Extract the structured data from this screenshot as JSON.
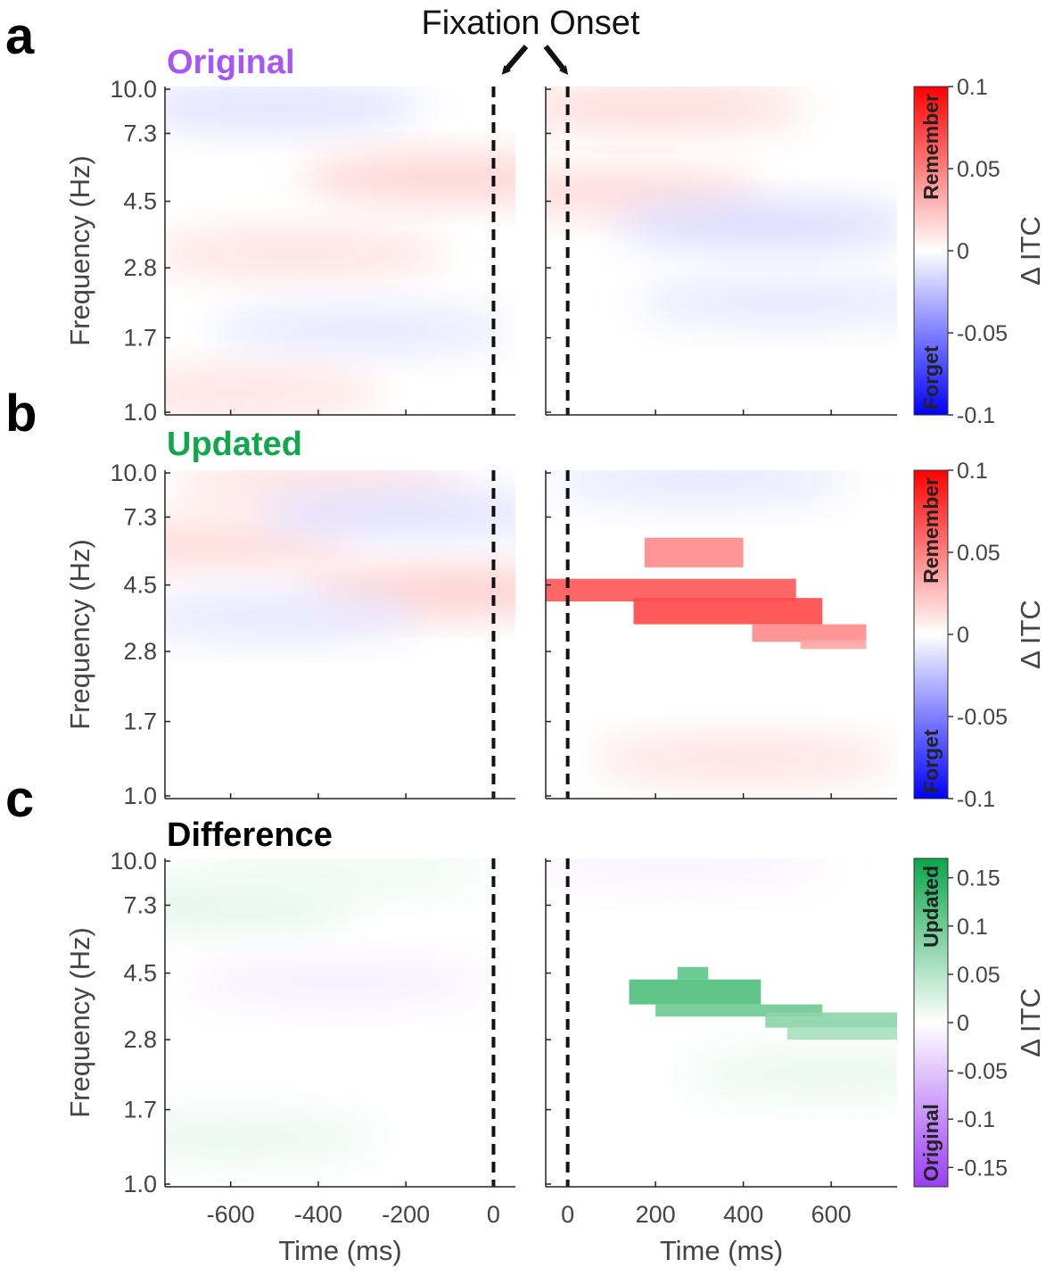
{
  "figure": {
    "fixation_label": "Fixation Onset"
  },
  "chart_data": [
    {
      "type": "heatmap",
      "panel": "a",
      "title": "Original",
      "title_color": "#a855f7",
      "ylabel": "Frequency (Hz)",
      "xlabel": "",
      "yticks": [
        "10.0",
        "7.3",
        "4.5",
        "2.8",
        "1.7",
        "1.0"
      ],
      "left_xlim": [
        -750,
        50
      ],
      "right_xlim": [
        -50,
        750
      ],
      "left_xticks": [
        -600,
        -400,
        -200,
        0
      ],
      "right_xticks": [
        0,
        200,
        400,
        600
      ],
      "left_xtick_labels": [],
      "right_xtick_labels": [],
      "fixation_time_ms": 0,
      "colorbar": {
        "label": "Δ ITC",
        "range": [
          -0.1,
          0.1
        ],
        "ticks": [
          "0.1",
          "0.05",
          "0",
          "-0.05",
          "-0.1"
        ],
        "positive_label": "Remember",
        "negative_label": "Forget",
        "positive_color": "#ff0000",
        "negative_color": "#0000ff"
      },
      "blobs_left": [
        {
          "t": -500,
          "f": 8.8,
          "v": -0.012
        },
        {
          "t": -100,
          "f": 5.3,
          "v": 0.018
        },
        {
          "t": -450,
          "f": 3.1,
          "v": 0.012
        },
        {
          "t": -300,
          "f": 1.8,
          "v": -0.01
        },
        {
          "t": -600,
          "f": 1.15,
          "v": 0.012
        }
      ],
      "blobs_right": [
        {
          "t": 200,
          "f": 8.8,
          "v": 0.015
        },
        {
          "t": 100,
          "f": 4.8,
          "v": 0.015
        },
        {
          "t": 450,
          "f": 3.8,
          "v": -0.015
        },
        {
          "t": 500,
          "f": 2.2,
          "v": -0.01
        }
      ],
      "sig_left": [],
      "sig_right": []
    },
    {
      "type": "heatmap",
      "panel": "b",
      "title": "Updated",
      "title_color": "#10a84a",
      "ylabel": "Frequency (Hz)",
      "xlabel": "",
      "yticks": [
        "10.0",
        "7.3",
        "4.5",
        "2.8",
        "1.7",
        "1.0"
      ],
      "left_xlim": [
        -750,
        50
      ],
      "right_xlim": [
        -50,
        750
      ],
      "left_xticks": [
        -600,
        -400,
        -200,
        0
      ],
      "right_xticks": [
        0,
        200,
        400,
        600
      ],
      "left_xtick_labels": [],
      "right_xtick_labels": [],
      "fixation_time_ms": 0,
      "colorbar": {
        "label": "Δ ITC",
        "range": [
          -0.1,
          0.1
        ],
        "ticks": [
          "0.1",
          "0.05",
          "0",
          "-0.05",
          "-0.1"
        ],
        "positive_label": "Remember",
        "negative_label": "Forget",
        "positive_color": "#ff0000",
        "negative_color": "#0000ff"
      },
      "blobs_left": [
        {
          "t": -400,
          "f": 9.2,
          "v": 0.012
        },
        {
          "t": -650,
          "f": 6.0,
          "v": 0.015
        },
        {
          "t": -100,
          "f": 4.3,
          "v": 0.02
        },
        {
          "t": -200,
          "f": 7.5,
          "v": -0.012
        },
        {
          "t": -500,
          "f": 3.6,
          "v": -0.01
        }
      ],
      "blobs_right": [
        {
          "t": 400,
          "f": 1.3,
          "v": 0.012
        },
        {
          "t": 300,
          "f": 9.5,
          "v": -0.01
        }
      ],
      "sig_left": [],
      "sig_right": [
        {
          "t0": 175,
          "t1": 400,
          "f0": 5.1,
          "f1": 6.3,
          "v": 0.045
        },
        {
          "t0": -50,
          "t1": 520,
          "f0": 4.0,
          "f1": 4.7,
          "v": 0.065
        },
        {
          "t0": 150,
          "t1": 580,
          "f0": 3.4,
          "f1": 4.1,
          "v": 0.07
        },
        {
          "t0": 420,
          "t1": 680,
          "f0": 3.0,
          "f1": 3.4,
          "v": 0.045
        },
        {
          "t0": 530,
          "t1": 680,
          "f0": 2.85,
          "f1": 3.05,
          "v": 0.035
        }
      ]
    },
    {
      "type": "heatmap",
      "panel": "c",
      "title": "Difference",
      "title_color": "#000000",
      "ylabel": "Frequency (Hz)",
      "xlabel": "Time (ms)",
      "yticks": [
        "10.0",
        "7.3",
        "4.5",
        "2.8",
        "1.7",
        "1.0"
      ],
      "left_xlim": [
        -750,
        50
      ],
      "right_xlim": [
        -50,
        750
      ],
      "left_xticks": [
        -600,
        -400,
        -200,
        0
      ],
      "right_xticks": [
        0,
        200,
        400,
        600
      ],
      "left_xtick_labels": [
        "-600",
        "-400",
        "-200",
        "0"
      ],
      "right_xtick_labels": [
        "0",
        "200",
        "400",
        "600"
      ],
      "fixation_time_ms": 0,
      "colorbar": {
        "label": "Δ ITC",
        "range": [
          -0.17,
          0.17
        ],
        "ticks": [
          "0.15",
          "0.1",
          "0.05",
          "0",
          "-0.05",
          "-0.1",
          "-0.15"
        ],
        "positive_label": "Updated",
        "negative_label": "Original",
        "positive_color": "#0aa64a",
        "negative_color": "#9b3cf5"
      },
      "blobs_left": [
        {
          "t": -650,
          "f": 7.3,
          "v": 0.02
        },
        {
          "t": -350,
          "f": 9.2,
          "v": 0.012
        },
        {
          "t": -350,
          "f": 4.2,
          "v": -0.015
        },
        {
          "t": -600,
          "f": 1.4,
          "v": 0.015
        }
      ],
      "blobs_right": [
        {
          "t": 250,
          "f": 9.8,
          "v": -0.012
        },
        {
          "t": 600,
          "f": 2.2,
          "v": 0.015
        }
      ],
      "sig_left": [],
      "sig_right": [
        {
          "t0": 250,
          "t1": 320,
          "f0": 4.3,
          "f1": 4.7,
          "v": 0.11
        },
        {
          "t0": 140,
          "t1": 440,
          "f0": 3.6,
          "f1": 4.3,
          "v": 0.12
        },
        {
          "t0": 200,
          "t1": 580,
          "f0": 3.3,
          "f1": 3.6,
          "v": 0.1
        },
        {
          "t0": 450,
          "t1": 750,
          "f0": 3.05,
          "f1": 3.4,
          "v": 0.08
        },
        {
          "t0": 500,
          "t1": 750,
          "f0": 2.8,
          "f1": 3.05,
          "v": 0.06
        }
      ]
    }
  ]
}
